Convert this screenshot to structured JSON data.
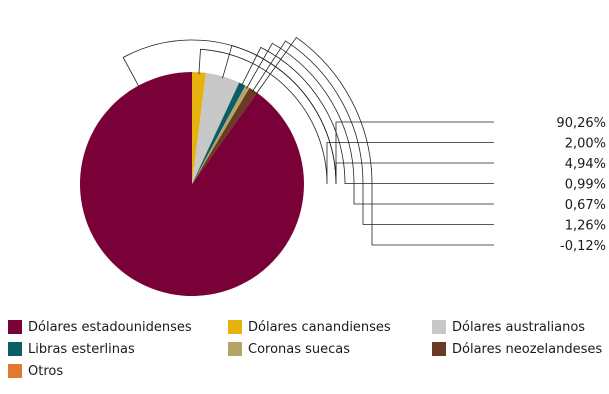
{
  "chart_data": {
    "type": "pie",
    "title": "",
    "slices": [
      {
        "label": "Dólares estadounidenses",
        "value": 90.26,
        "display": "90,26%",
        "color": "#7a0038"
      },
      {
        "label": "Dólares canandienses",
        "value": 2.0,
        "display": "2,00%",
        "color": "#e5b20e"
      },
      {
        "label": "Dólares australianos",
        "value": 4.94,
        "display": "4,94%",
        "color": "#c8c8c8"
      },
      {
        "label": "Libras esterlinas",
        "value": 0.99,
        "display": "0,99%",
        "color": "#0b5e66"
      },
      {
        "label": "Coronas suecas",
        "value": 0.67,
        "display": "0,67%",
        "color": "#b5a46a"
      },
      {
        "label": "Dólares neozelandeses",
        "value": 1.26,
        "display": "1,26%",
        "color": "#6b3a22"
      },
      {
        "label": "Otros",
        "value": -0.12,
        "display": "-0,12%",
        "color": "#e07a2e"
      }
    ],
    "legend_position": "bottom"
  }
}
